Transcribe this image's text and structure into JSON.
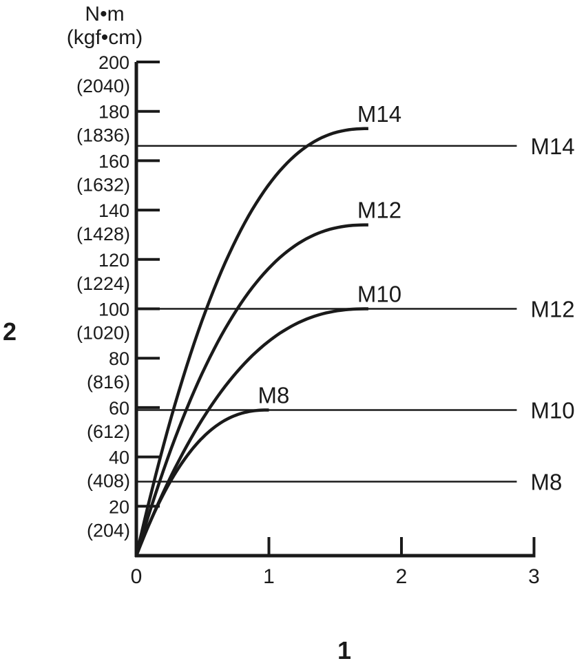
{
  "chart_data": {
    "type": "line",
    "units": [
      "N•m",
      "(kgf•cm)"
    ],
    "xaxis_callout": "1",
    "yaxis_callout": "2",
    "xlim": [
      0,
      3
    ],
    "ylim": [
      0,
      200
    ],
    "xticks": [
      "0",
      "1",
      "2",
      "3"
    ],
    "yticks": [
      {
        "value": 200,
        "label": "200",
        "sub": "(2040)"
      },
      {
        "value": 180,
        "label": "180",
        "sub": "(1836)"
      },
      {
        "value": 160,
        "label": "160",
        "sub": "(1632)"
      },
      {
        "value": 140,
        "label": "140",
        "sub": "(1428)"
      },
      {
        "value": 120,
        "label": "120",
        "sub": "(1224)"
      },
      {
        "value": 100,
        "label": "100",
        "sub": "(1020)"
      },
      {
        "value": 80,
        "label": "80",
        "sub": "(816)"
      },
      {
        "value": 60,
        "label": "60",
        "sub": "(612)"
      },
      {
        "value": 40,
        "label": "40",
        "sub": "(408)"
      },
      {
        "value": 20,
        "label": "20",
        "sub": "(204)"
      }
    ],
    "curves": [
      {
        "name": "M14",
        "x_end": 1.75,
        "y_end": 173
      },
      {
        "name": "M12",
        "x_end": 1.75,
        "y_end": 134
      },
      {
        "name": "M10",
        "x_end": 1.75,
        "y_end": 100
      },
      {
        "name": "M8",
        "x_end": 1.0,
        "y_end": 59
      }
    ],
    "hlines": [
      {
        "name": "M14",
        "y": 166
      },
      {
        "name": "M12",
        "y": 100
      },
      {
        "name": "M10",
        "y": 59
      },
      {
        "name": "M8",
        "y": 30
      }
    ]
  }
}
